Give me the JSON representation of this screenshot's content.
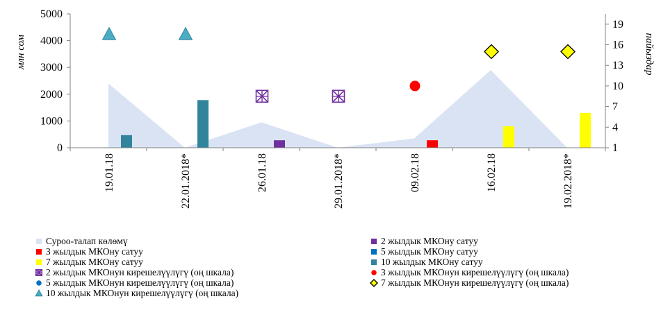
{
  "chart_data": {
    "type": "bar",
    "categories": [
      "19.01.18",
      "22.01.2018*",
      "26.01.18",
      "29.01.2018*",
      "09.02.18",
      "16.02.18",
      "19.02.2018*"
    ],
    "ylabel": "млн сом",
    "y2label": "пайыздар",
    "ylim": [
      0,
      5000
    ],
    "yticks": [
      "0",
      "1000",
      "2000",
      "3000",
      "4000",
      "5000"
    ],
    "y2lim": [
      1,
      20.5
    ],
    "y2ticks": [
      "1",
      "4",
      "7",
      "10",
      "13",
      "16",
      "19"
    ],
    "grid": false,
    "legend_position": "bottom",
    "area": {
      "name": "Суроо-талап көлөмү",
      "color": "#dae3f3",
      "values": [
        2400,
        0,
        950,
        0,
        350,
        2900,
        0
      ]
    },
    "bar_series": [
      {
        "name": "2 жылдык МКОну сатуу",
        "color": "#7030a0",
        "values": [
          null,
          null,
          280,
          null,
          220,
          null,
          null
        ]
      },
      {
        "name": "3 жылдык МКОну сатуу",
        "color": "#ff0000",
        "values": [
          null,
          null,
          null,
          null,
          280,
          null,
          null
        ]
      },
      {
        "name": "5 жылдык МКОну сатуу",
        "color": "#0070c0",
        "values": [
          null,
          null,
          null,
          null,
          null,
          null,
          null
        ]
      },
      {
        "name": "7 жылдык МКОну сатуу",
        "color": "#ffff00",
        "values": [
          null,
          null,
          null,
          null,
          null,
          800,
          1300
        ]
      },
      {
        "name": "10 жылдык МКОну сатуу",
        "color": "#31849b",
        "values": [
          470,
          1780,
          null,
          null,
          null,
          null,
          null
        ]
      }
    ],
    "yield_series": [
      {
        "name": "2 жылдык МКОнун кирешелүүлүгү (оң шкала)",
        "marker": "boxx",
        "color": "#7030a0",
        "values": [
          null,
          null,
          8.5,
          8.5,
          null,
          null,
          null
        ]
      },
      {
        "name": "3 жылдык МКОнун кирешелүүлүгү (оң шкала)",
        "marker": "circle",
        "color": "#ff0000",
        "values": [
          null,
          null,
          null,
          null,
          10,
          null,
          null
        ]
      },
      {
        "name": "5 жылдык МКОнун кирешелүүлүгү (оң шкала)",
        "marker": "circle",
        "color": "#0070c0",
        "values": [
          null,
          null,
          null,
          null,
          null,
          null,
          null
        ]
      },
      {
        "name": "7 жылдык МКОнун кирешелүүлүгү (оң шкала)",
        "marker": "diamond",
        "color": "#ffff00",
        "values": [
          null,
          null,
          null,
          null,
          null,
          15,
          15
        ]
      },
      {
        "name": "10 жылдык МКОнун кирешелүүлүгү (оң шкала)",
        "marker": "triangle",
        "color": "#4bacc6",
        "values": [
          17.5,
          17.5,
          null,
          null,
          null,
          null,
          null
        ]
      }
    ],
    "legend_order": [
      [
        "area",
        null
      ],
      [
        "bar",
        0
      ],
      [
        "bar",
        1
      ],
      [
        "bar",
        2
      ],
      [
        "bar",
        3
      ],
      [
        "bar",
        4
      ],
      [
        "yield",
        0
      ],
      [
        "yield",
        1
      ],
      [
        "yield",
        2
      ],
      [
        "yield",
        3
      ],
      [
        "yield",
        4
      ]
    ]
  }
}
